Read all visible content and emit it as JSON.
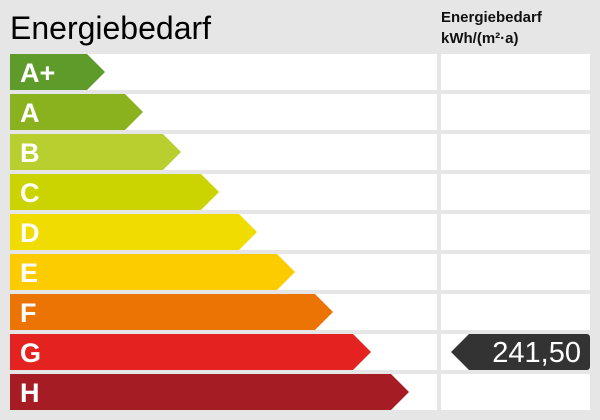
{
  "title": "Energiebedarf",
  "column_header": {
    "line1": "Energiebedarf",
    "line2": "kWh/(m²·a)"
  },
  "classes": [
    {
      "label": "A+",
      "color": "#5f9b2a"
    },
    {
      "label": "A",
      "color": "#8ab21f"
    },
    {
      "label": "B",
      "color": "#b9cf30"
    },
    {
      "label": "C",
      "color": "#cbd400"
    },
    {
      "label": "D",
      "color": "#f0dc00"
    },
    {
      "label": "E",
      "color": "#fccb00"
    },
    {
      "label": "F",
      "color": "#ec7405"
    },
    {
      "label": "G",
      "color": "#e42320"
    },
    {
      "label": "H",
      "color": "#a51c24"
    }
  ],
  "value": {
    "text": "241,50",
    "class": "G",
    "color": "#333333"
  }
}
